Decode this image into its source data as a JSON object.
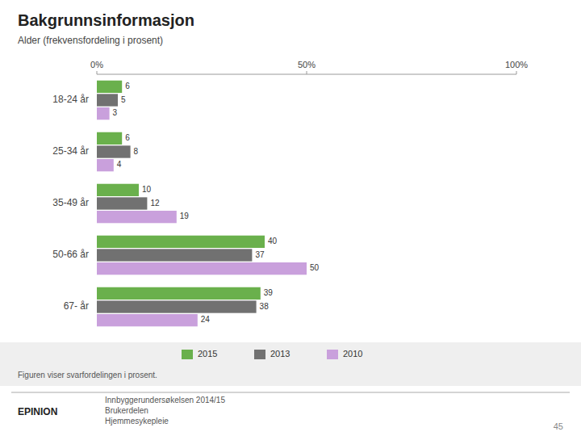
{
  "chart_data": {
    "type": "bar",
    "orientation": "horizontal",
    "title": "Bakgrunnsinformasjon",
    "subtitle": "Alder (frekvensfordeling i prosent)",
    "categories": [
      "18-24 år",
      "25-34 år",
      "35-49 år",
      "50-66 år",
      "67- år"
    ],
    "series": [
      {
        "name": "2015",
        "color": "#6ab04c",
        "values": [
          6,
          6,
          10,
          40,
          39
        ]
      },
      {
        "name": "2013",
        "color": "#717171",
        "values": [
          5,
          8,
          12,
          37,
          38
        ]
      },
      {
        "name": "2010",
        "color": "#c9a0dc",
        "values": [
          3,
          4,
          19,
          50,
          24
        ]
      }
    ],
    "xlim": [
      0,
      100
    ],
    "xticks": [
      {
        "value": 0,
        "label": "0%"
      },
      {
        "value": 50,
        "label": "50%"
      },
      {
        "value": 100,
        "label": "100%"
      }
    ],
    "grid": false,
    "legend": "bottom",
    "data_labels": true,
    "annotations": [
      "Figuren viser svarfordelingen i prosent.",
      "EPINION",
      "Innbyggerundersøkelsen 2014/15\nBrukerdelen\nHjemmesykepleie",
      "45"
    ]
  }
}
